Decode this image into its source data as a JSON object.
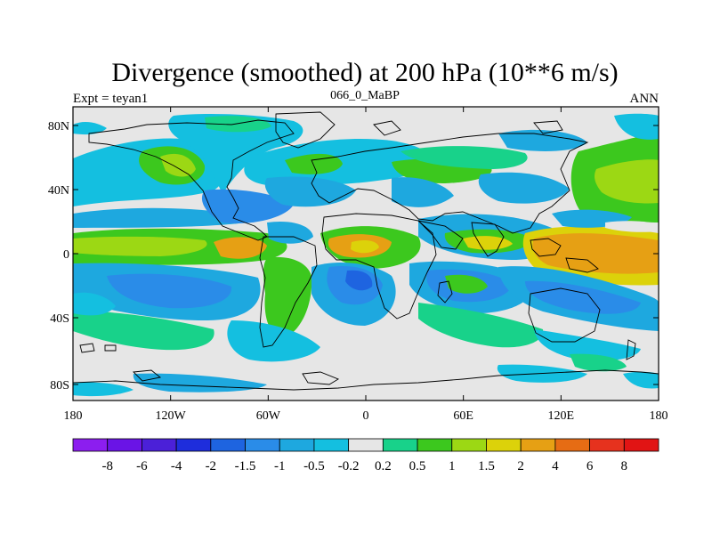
{
  "title": "Divergence (smoothed) at 200 hPa (10**6 m/s)",
  "left_label": "Expt = teyan1",
  "center_label": "066_0_MaBP",
  "right_label": "ANN",
  "y_ticks": [
    "80N",
    "40N",
    "0",
    "40S",
    "80S"
  ],
  "x_ticks": [
    "180",
    "120W",
    "60W",
    "0",
    "60E",
    "120E",
    "180"
  ],
  "colorbar": {
    "colors": [
      "#8c1eef",
      "#6a14e6",
      "#4b20d8",
      "#1e2ddc",
      "#1e64e0",
      "#2a8ce8",
      "#1ea8df",
      "#14bfe0",
      "#e6e6e6",
      "#18d28a",
      "#3cc81e",
      "#9cd814",
      "#dcd20a",
      "#e6a014",
      "#e66c14",
      "#e6321e",
      "#e11414"
    ],
    "labels": [
      "-8",
      "-6",
      "-4",
      "-2",
      "-1.5",
      "-1",
      "-0.5",
      "-0.2",
      "0.2",
      "0.5",
      "1",
      "1.5",
      "2",
      "4",
      "6",
      "8"
    ]
  }
}
